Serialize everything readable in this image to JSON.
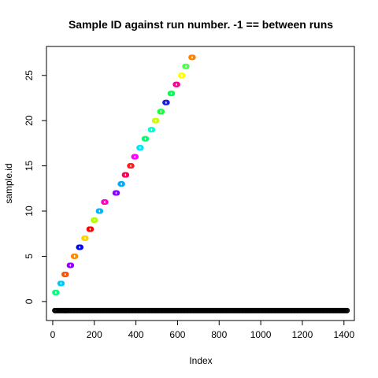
{
  "chart_data": {
    "type": "scatter",
    "title": "Sample ID against run number. -1 == between runs",
    "xlabel": "Index",
    "ylabel": "sample.id",
    "xlim": [
      -30,
      1450
    ],
    "ylim": [
      -2.1,
      28.2
    ],
    "x_ticks": [
      0,
      200,
      400,
      600,
      800,
      1000,
      1200,
      1400
    ],
    "y_ticks": [
      0,
      5,
      10,
      15,
      20,
      25
    ],
    "grid": false,
    "legend": "none",
    "total_points": 1416,
    "between_runs_value": -1,
    "between_runs_color": "#000000",
    "runs": [
      {
        "sample_id": 1,
        "x_start": 10,
        "x_end": 20,
        "color": "#00ff80"
      },
      {
        "sample_id": 2,
        "x_start": 35,
        "x_end": 45,
        "color": "#00c8ff"
      },
      {
        "sample_id": 3,
        "x_start": 55,
        "x_end": 65,
        "color": "#ff5000"
      },
      {
        "sample_id": 4,
        "x_start": 80,
        "x_end": 90,
        "color": "#9600ff"
      },
      {
        "sample_id": 5,
        "x_start": 100,
        "x_end": 110,
        "color": "#ff8c00"
      },
      {
        "sample_id": 6,
        "x_start": 125,
        "x_end": 135,
        "color": "#0000ff"
      },
      {
        "sample_id": 7,
        "x_start": 150,
        "x_end": 160,
        "color": "#ffd200"
      },
      {
        "sample_id": 8,
        "x_start": 175,
        "x_end": 185,
        "color": "#ff0000"
      },
      {
        "sample_id": 9,
        "x_start": 195,
        "x_end": 205,
        "color": "#b4ff00"
      },
      {
        "sample_id": 10,
        "x_start": 220,
        "x_end": 230,
        "color": "#00b4ff"
      },
      {
        "sample_id": 11,
        "x_start": 245,
        "x_end": 255,
        "color": "#ff00c8"
      },
      {
        "sample_id": 12,
        "x_start": 300,
        "x_end": 310,
        "color": "#8c00ff"
      },
      {
        "sample_id": 13,
        "x_start": 325,
        "x_end": 335,
        "color": "#00aaff"
      },
      {
        "sample_id": 14,
        "x_start": 345,
        "x_end": 355,
        "color": "#ff0050"
      },
      {
        "sample_id": 15,
        "x_start": 370,
        "x_end": 380,
        "color": "#ff1e1e"
      },
      {
        "sample_id": 16,
        "x_start": 390,
        "x_end": 400,
        "color": "#ff00ff"
      },
      {
        "sample_id": 17,
        "x_start": 415,
        "x_end": 425,
        "color": "#00e6ff"
      },
      {
        "sample_id": 18,
        "x_start": 440,
        "x_end": 450,
        "color": "#00ff6e"
      },
      {
        "sample_id": 19,
        "x_start": 470,
        "x_end": 480,
        "color": "#00ffd2"
      },
      {
        "sample_id": 20,
        "x_start": 490,
        "x_end": 500,
        "color": "#c8ff00"
      },
      {
        "sample_id": 21,
        "x_start": 515,
        "x_end": 525,
        "color": "#14ff3c"
      },
      {
        "sample_id": 22,
        "x_start": 540,
        "x_end": 550,
        "color": "#1e1edc"
      },
      {
        "sample_id": 23,
        "x_start": 565,
        "x_end": 575,
        "color": "#00ff50"
      },
      {
        "sample_id": 24,
        "x_start": 590,
        "x_end": 600,
        "color": "#ff0096"
      },
      {
        "sample_id": 25,
        "x_start": 615,
        "x_end": 625,
        "color": "#ffff00"
      },
      {
        "sample_id": 26,
        "x_start": 635,
        "x_end": 645,
        "color": "#50ff50"
      },
      {
        "sample_id": 27,
        "x_start": 665,
        "x_end": 675,
        "color": "#ff8200"
      }
    ],
    "between_runs_ranges": [
      [
        10,
        60
      ],
      [
        60,
        1415
      ]
    ]
  }
}
